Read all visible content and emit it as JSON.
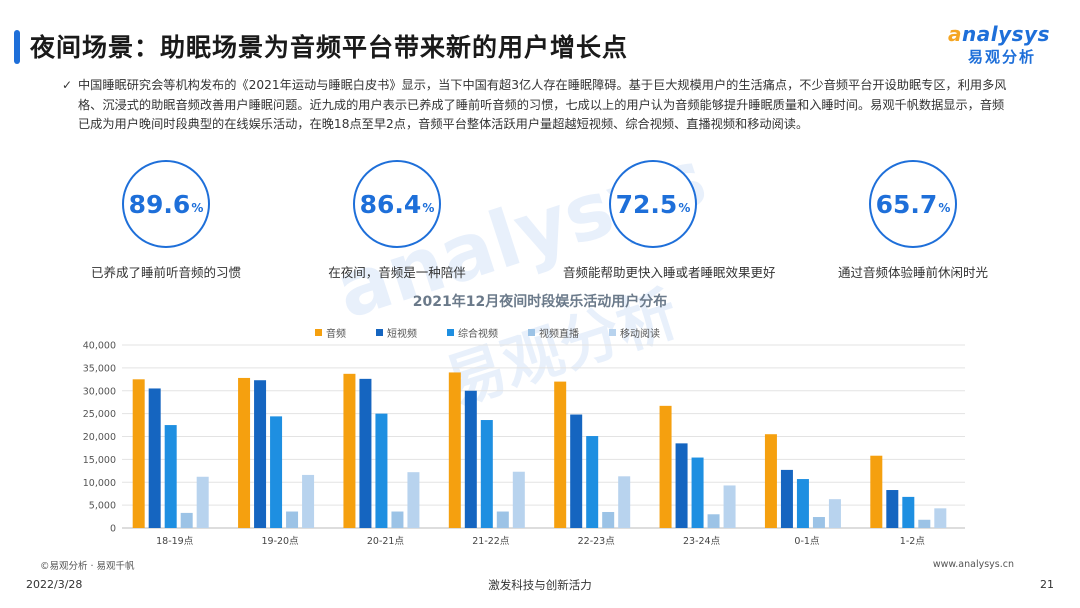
{
  "page": {
    "title": "夜间场景：助眠场景为音频平台带来新的用户增长点",
    "description": "中国睡眠研究会等机构发布的《2021年运动与睡眠白皮书》显示，当下中国有超3亿人存在睡眠障碍。基于巨大规模用户的生活痛点，不少音频平台开设助眠专区，利用多风格、沉浸式的助眠音频改善用户睡眠问题。近九成的用户表示已养成了睡前听音频的习惯，七成以上的用户认为音频能够提升睡眠质量和入睡时间。易观千帆数据显示，音频已成为用户晚间时段典型的在线娱乐活动，在晚18点至早2点，音频平台整体活跃用户量超越短视频、综合视频、直播视频和移动阅读。",
    "tick_icon": "check-icon",
    "logo": {
      "en_prefix": "a",
      "en_rest": "nalysys",
      "cn": "易观分析"
    },
    "watermark": {
      "en": "analysys",
      "cn": "易观分析"
    },
    "source": "©易观分析 · 易观千帆",
    "website": "www.analysys.cn",
    "date": "2022/3/28",
    "slogan": "激发科技与创新活力",
    "page_number": "21",
    "accent_color": "#1e6fd9"
  },
  "stats": [
    {
      "value": "89.6",
      "unit": "%",
      "label": "已养成了睡前听音频的习惯"
    },
    {
      "value": "86.4",
      "unit": "%",
      "label": "在夜间，音频是一种陪伴"
    },
    {
      "value": "72.5",
      "unit": "%",
      "label": "音频能帮助更快入睡或者睡眠效果更好"
    },
    {
      "value": "65.7",
      "unit": "%",
      "label": "通过音频体验睡前休闲时光"
    }
  ],
  "chart_data": {
    "type": "bar",
    "title": "2021年12月夜间时段娱乐活动用户分布",
    "categories": [
      "18-19点",
      "19-20点",
      "20-21点",
      "21-22点",
      "22-23点",
      "23-24点",
      "0-1点",
      "1-2点"
    ],
    "ylim": [
      0,
      40000
    ],
    "yticks": [
      "0",
      "5,000",
      "10,000",
      "15,000",
      "20,000",
      "25,000",
      "30,000",
      "35,000",
      "40,000"
    ],
    "legend_position": "top",
    "grid": true,
    "series": [
      {
        "name": "音频",
        "color": "#f5a00f",
        "values": [
          32500,
          32800,
          33700,
          34000,
          32000,
          26700,
          20500,
          15800
        ]
      },
      {
        "name": "短视频",
        "color": "#1565c0",
        "values": [
          30500,
          32300,
          32600,
          30000,
          24800,
          18500,
          12700,
          8300
        ]
      },
      {
        "name": "综合视频",
        "color": "#1e8fe1",
        "values": [
          22500,
          24400,
          25000,
          23600,
          20100,
          15400,
          10700,
          6800
        ]
      },
      {
        "name": "视频直播",
        "color": "#9cc3e6",
        "values": [
          3300,
          3600,
          3600,
          3600,
          3500,
          3000,
          2400,
          1800
        ]
      },
      {
        "name": "移动阅读",
        "color": "#b8d3ee",
        "values": [
          11200,
          11600,
          12200,
          12300,
          11300,
          9300,
          6300,
          4300
        ]
      }
    ]
  }
}
